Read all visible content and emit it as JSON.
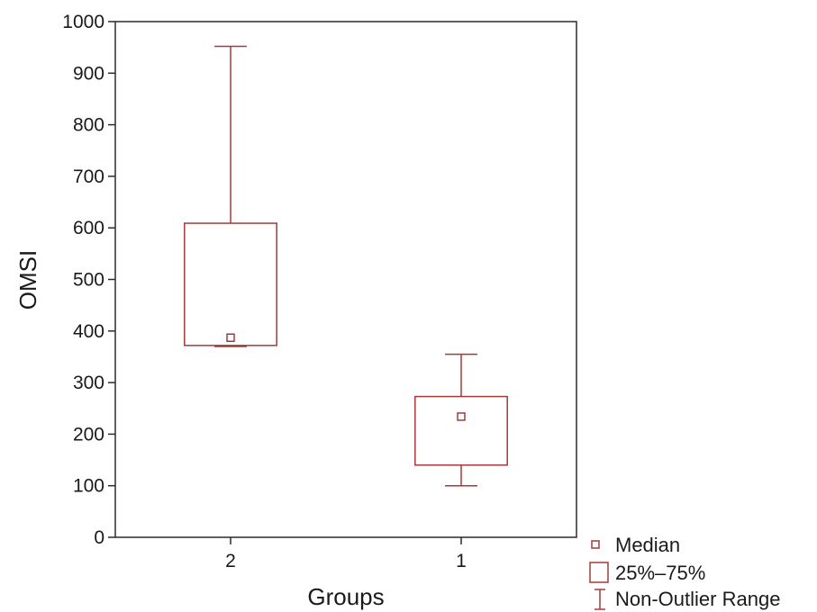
{
  "chart_data": {
    "type": "box",
    "title": "",
    "xlabel": "Groups",
    "ylabel": "OMSI",
    "ylim": [
      0,
      1000
    ],
    "yticks": [
      0,
      100,
      200,
      300,
      400,
      500,
      600,
      700,
      800,
      900,
      1000
    ],
    "grid": false,
    "legend_position": "bottom-right",
    "color": "#a33a3a",
    "categories": [
      "2",
      "1"
    ],
    "boxes": [
      {
        "category": "2",
        "median": 387,
        "q1": 372,
        "q3": 609,
        "whisker_low": 370,
        "whisker_high": 952
      },
      {
        "category": "1",
        "median": 234,
        "q1": 140,
        "q3": 273,
        "whisker_low": 100,
        "whisker_high": 355
      }
    ],
    "legend": [
      {
        "symbol": "small-square",
        "label": "Median"
      },
      {
        "symbol": "box",
        "label": "25%–75%"
      },
      {
        "symbol": "whisker",
        "label": "Non-Outlier Range"
      }
    ]
  }
}
